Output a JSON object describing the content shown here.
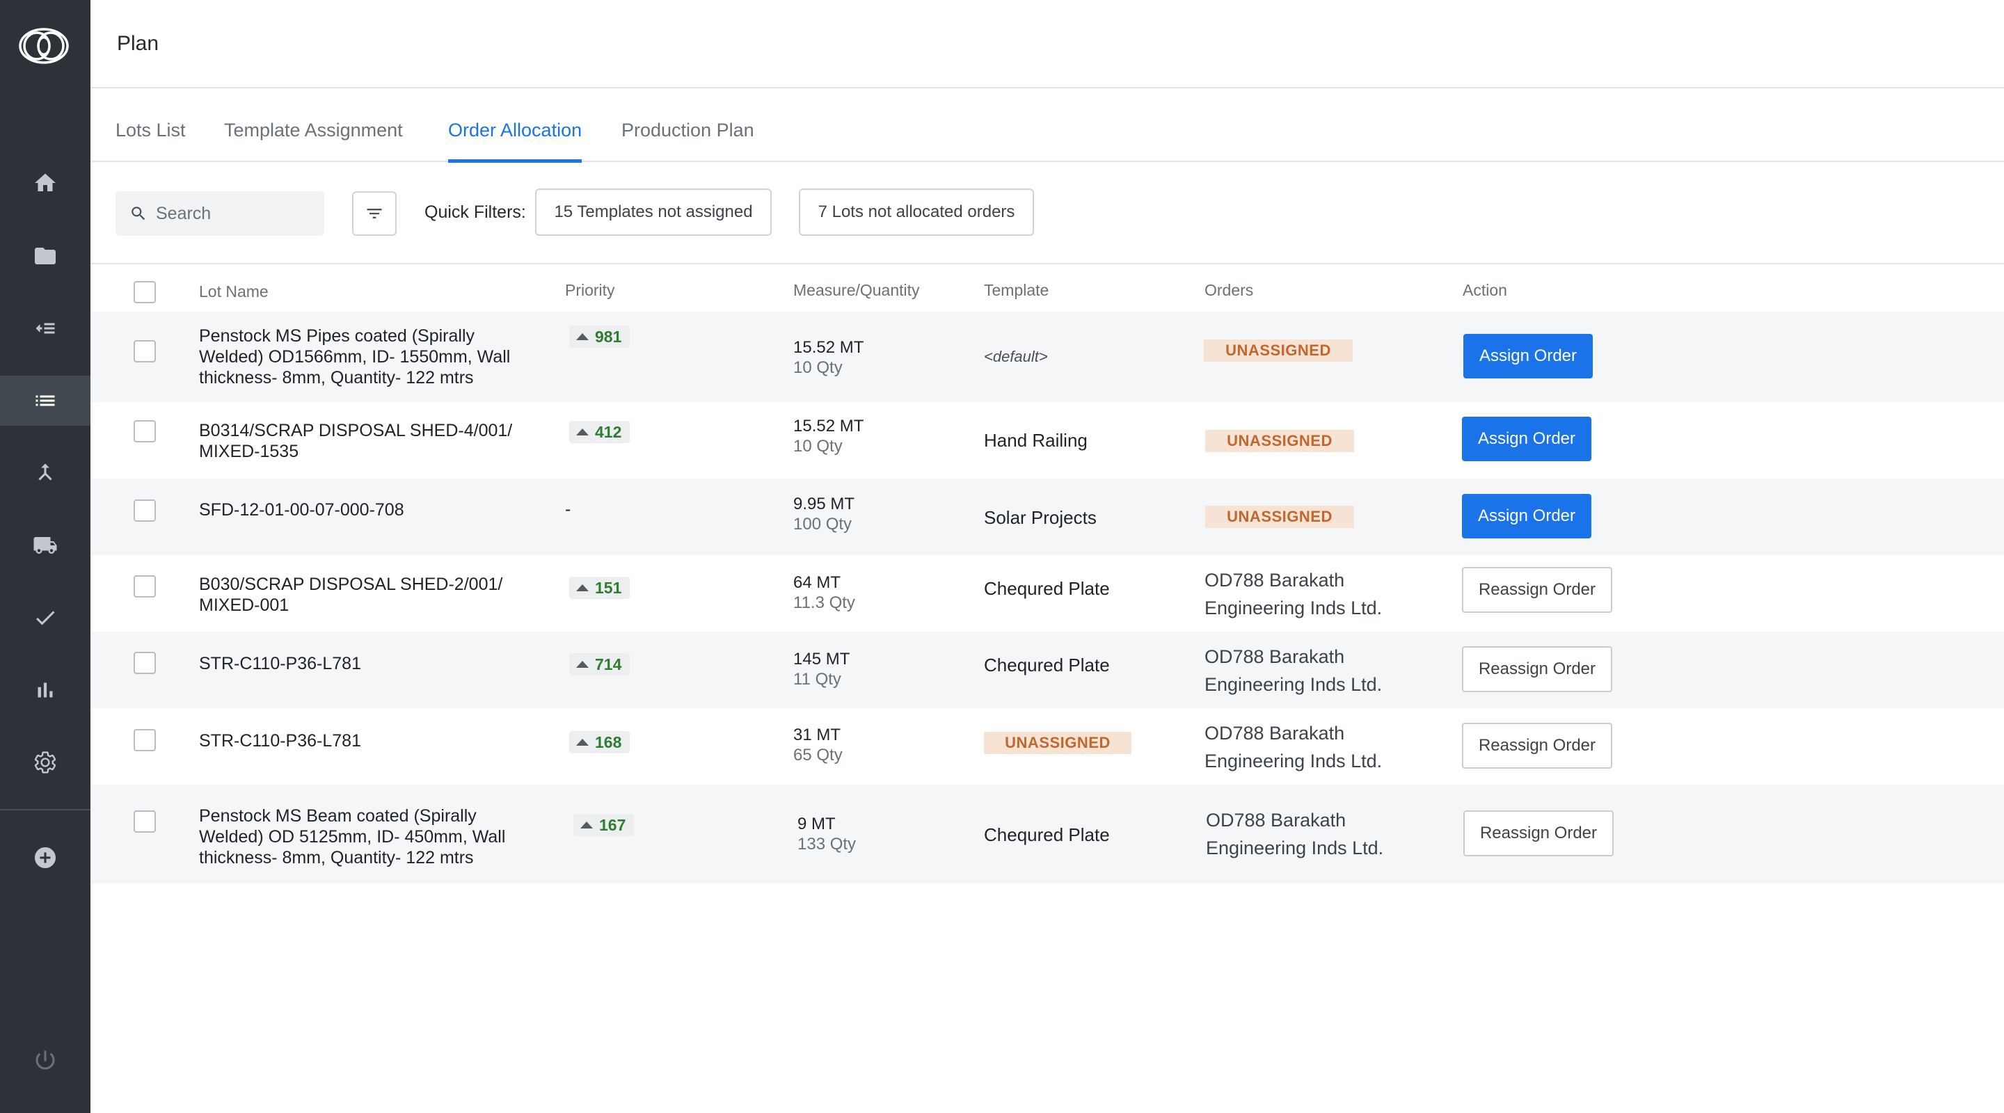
{
  "app": {
    "title": "Plan"
  },
  "sidebar": {
    "logo": "brand-logo",
    "items": [
      {
        "icon": "home-icon"
      },
      {
        "icon": "folder-icon"
      },
      {
        "icon": "checklist-icon"
      },
      {
        "icon": "list-icon",
        "active": true
      },
      {
        "icon": "merge-icon"
      },
      {
        "icon": "truck-icon"
      },
      {
        "icon": "check-icon"
      },
      {
        "icon": "bar-chart-icon"
      },
      {
        "icon": "settings-icon"
      },
      {
        "icon": "add-circle-icon"
      },
      {
        "icon": "power-icon"
      }
    ]
  },
  "tabs": [
    {
      "label": "Lots List"
    },
    {
      "label": "Template Assignment"
    },
    {
      "label": "Order Allocation",
      "active": true
    },
    {
      "label": "Production Plan"
    }
  ],
  "toolbar": {
    "search_placeholder": "Search",
    "quick_filters_label": "Quick Filters:",
    "filters": [
      {
        "label": "15 Templates not assigned"
      },
      {
        "label": "7 Lots not allocated orders"
      }
    ]
  },
  "table": {
    "columns": {
      "lot_name": "Lot Name",
      "priority": "Priority",
      "measure": "Measure/Quantity",
      "template": "Template",
      "orders": "Orders",
      "action": "Action"
    },
    "rows": [
      {
        "lot": [
          "Penstock MS Pipes coated (Spirally",
          "Welded) OD1566mm, ID- 1550mm, Wall",
          "thickness- 8mm, Quantity- 122 mtrs"
        ],
        "priority": "981",
        "measure": "15.52 MT",
        "qty": "10 Qty",
        "template": "<default>",
        "order_status": "UNASSIGNED",
        "action": "Assign Order"
      },
      {
        "lot": [
          "B0314/SCRAP DISPOSAL SHED-4/001/",
          "MIXED-1535"
        ],
        "priority": "412",
        "measure": "15.52 MT",
        "qty": "10 Qty",
        "template": "Hand Railing",
        "order_status": "UNASSIGNED",
        "action": "Assign Order"
      },
      {
        "lot": [
          "SFD-12-01-00-07-000-708"
        ],
        "priority": "-",
        "measure": "9.95 MT",
        "qty": "100 Qty",
        "template": "Solar Projects",
        "order_status": "UNASSIGNED",
        "action": "Assign Order"
      },
      {
        "lot": [
          "B030/SCRAP DISPOSAL SHED-2/001/",
          "MIXED-001"
        ],
        "priority": "151",
        "measure": "64 MT",
        "qty": "11.3 Qty",
        "template": "Chequred Plate",
        "order": [
          "OD788 Barakath",
          "Engineering Inds Ltd."
        ],
        "action": "Reassign Order"
      },
      {
        "lot": [
          "STR-C110-P36-L781"
        ],
        "priority": "714",
        "measure": "145 MT",
        "qty": "11 Qty",
        "template": "Chequred Plate",
        "order": [
          "OD788 Barakath",
          "Engineering Inds Ltd."
        ],
        "action": "Reassign Order"
      },
      {
        "lot": [
          "STR-C110-P36-L781"
        ],
        "priority": "168",
        "measure": "31 MT",
        "qty": "65 Qty",
        "template_status": "UNASSIGNED",
        "order": [
          "OD788 Barakath",
          "Engineering Inds Ltd."
        ],
        "action": "Reassign Order"
      },
      {
        "lot": [
          "Penstock MS Beam coated (Spirally",
          "Welded) OD 5125mm, ID- 450mm, Wall",
          "thickness- 8mm, Quantity- 122 mtrs"
        ],
        "priority": "167",
        "measure": "9 MT",
        "qty": "133 Qty",
        "template": "Chequred Plate",
        "order": [
          "OD788 Barakath",
          "Engineering Inds Ltd."
        ],
        "action": "Reassign Order"
      }
    ]
  },
  "colors": {
    "sidebar_bg": "#2d3238",
    "accent": "#1a73e8",
    "priority_text": "#2e7d32",
    "unassigned_bg": "#f6e3d4",
    "unassigned_text": "#c0682d"
  }
}
